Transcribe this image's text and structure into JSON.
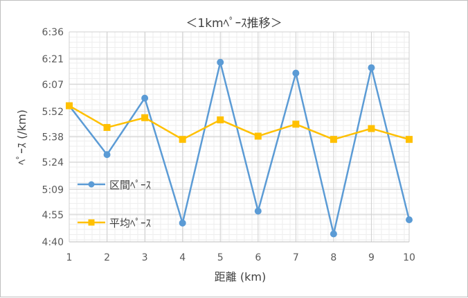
{
  "chart_data": {
    "type": "line",
    "title": "＜1kmﾍﾟｰｽ推移＞",
    "xlabel": "距離 (km)",
    "ylabel": "ﾍﾟｰｽ (/km)",
    "categories": [
      "1",
      "2",
      "3",
      "4",
      "5",
      "6",
      "7",
      "8",
      "9",
      "10"
    ],
    "y_unit": "minutes per km",
    "ylim": [
      280,
      396
    ],
    "y_ticks": [
      "4:40",
      "4:55",
      "5:09",
      "5:24",
      "5:38",
      "5:52",
      "6:07",
      "6:21",
      "6:36"
    ],
    "grid": true,
    "legend": "left",
    "series": [
      {
        "name": "区間ﾍﾟｰｽ",
        "color": "#5b9bd5",
        "marker": "circle",
        "values": [
          5.92,
          5.47,
          5.99,
          4.84,
          6.32,
          4.95,
          6.22,
          4.74,
          6.27,
          4.87
        ]
      },
      {
        "name": "平均ﾍﾟｰｽ",
        "color": "#ffc000",
        "marker": "square",
        "values": [
          5.92,
          5.72,
          5.81,
          5.61,
          5.79,
          5.64,
          5.75,
          5.61,
          5.71,
          5.61
        ]
      }
    ]
  }
}
